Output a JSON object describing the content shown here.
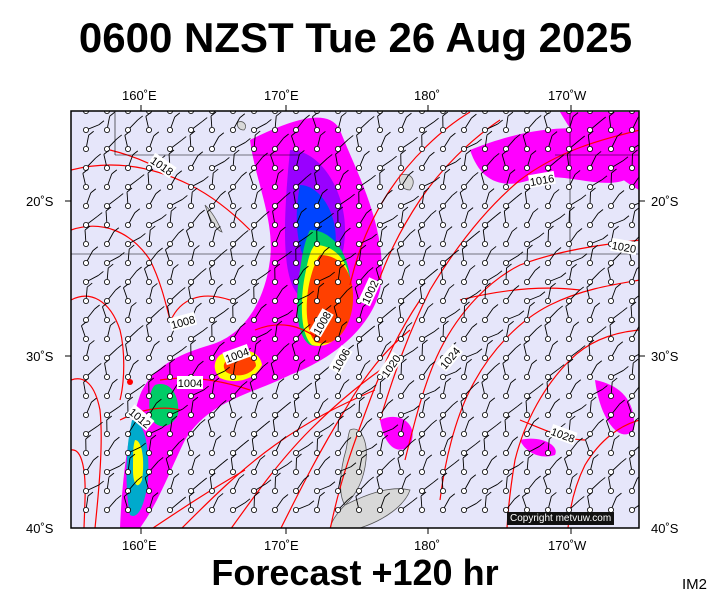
{
  "title": "0600 NZST Tue 26 Aug 2025",
  "subtitle": "Forecast +120 hr",
  "tag": "IM2",
  "copyright": "Copyright metvuw.com",
  "lon_labels": [
    "160˚E",
    "170˚E",
    "180˚",
    "170˚W"
  ],
  "lat_labels": [
    "20˚S",
    "30˚S",
    "40˚S"
  ],
  "isobar_labels": [
    "1018",
    "1016",
    "1020",
    "1008",
    "1004",
    "1004",
    "1012",
    "1008",
    "1002",
    "1006",
    "1020",
    "1024",
    "1028"
  ],
  "colors": {
    "ocean": "#e6e6fa",
    "isobar": "#ff0000",
    "rain_light": "#ff00ff",
    "rain_heavy": "#ff4000"
  }
}
